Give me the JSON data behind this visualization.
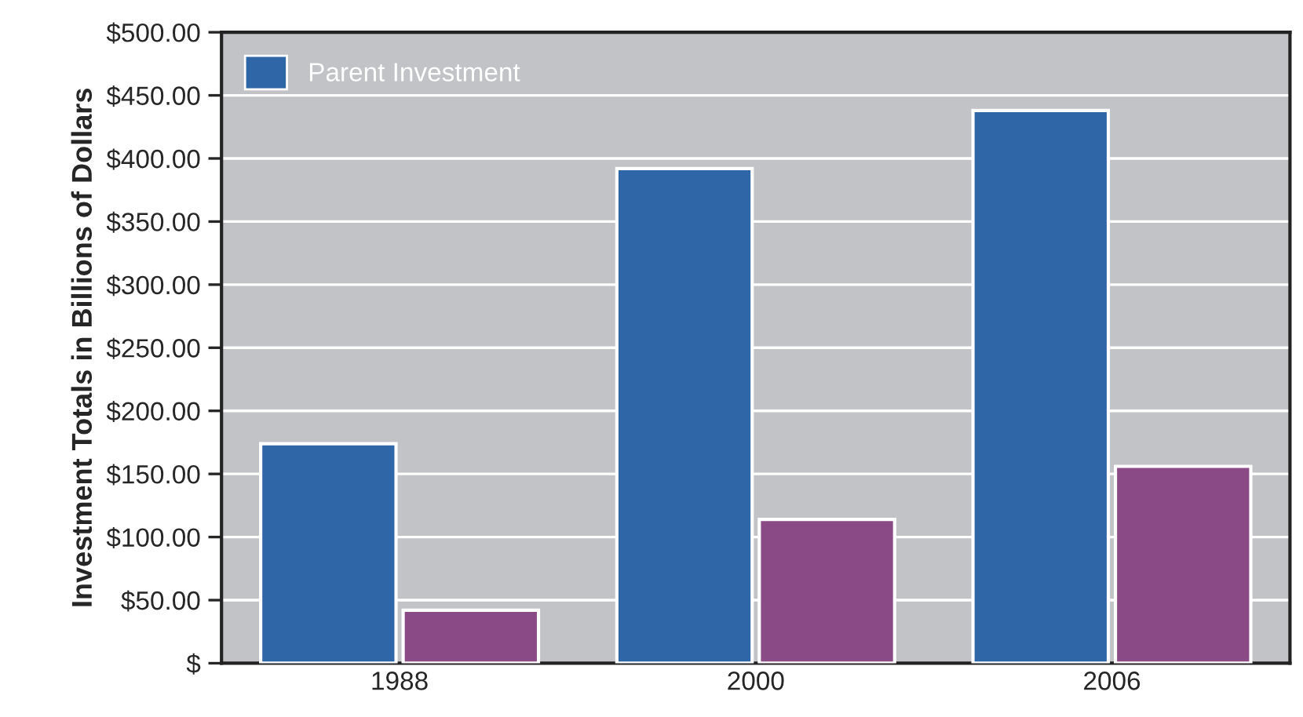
{
  "chart_data": {
    "type": "bar",
    "ylabel": "Investment Totals in Billions of Dollars",
    "categories": [
      "1988",
      "2000",
      "2006"
    ],
    "series": [
      {
        "name": "Parent Investment",
        "color": "#2f66a8",
        "values": [
          174,
          392,
          438
        ]
      },
      {
        "color": "#8a4a86",
        "values": [
          42,
          114,
          156
        ]
      }
    ],
    "ylim": [
      0,
      500
    ],
    "yticks": [
      {
        "value": 0,
        "label": "$"
      },
      {
        "value": 50,
        "label": "$50.00"
      },
      {
        "value": 100,
        "label": "$100.00"
      },
      {
        "value": 150,
        "label": "$150.00"
      },
      {
        "value": 200,
        "label": "$200.00"
      },
      {
        "value": 250,
        "label": "$250.00"
      },
      {
        "value": 300,
        "label": "$300.00"
      },
      {
        "value": 350,
        "label": "$350.00"
      },
      {
        "value": 400,
        "label": "$400.00"
      },
      {
        "value": 450,
        "label": "$450.00"
      },
      {
        "value": 500,
        "label": "$500.00"
      }
    ],
    "grid": "y",
    "legend": "top left"
  }
}
